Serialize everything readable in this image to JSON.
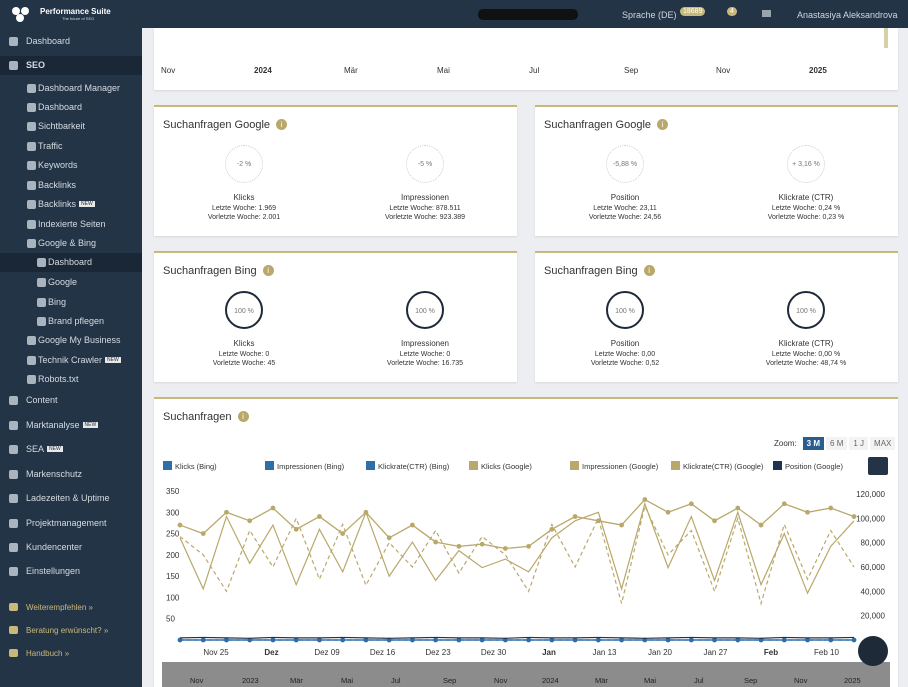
{
  "header": {
    "brand": "Performance Suite",
    "tagline": "The future of SEO",
    "language": "Sprache (DE)",
    "badge1": "18689",
    "badge2": "4",
    "user": "Anastasiya Aleksandrova"
  },
  "sidebar": [
    {
      "label": "Dashboard",
      "level": 0
    },
    {
      "label": "SEO",
      "level": 0,
      "active": true
    },
    {
      "label": "Dashboard Manager",
      "level": 1
    },
    {
      "label": "Dashboard",
      "level": 1
    },
    {
      "label": "Sichtbarkeit",
      "level": 1
    },
    {
      "label": "Traffic",
      "level": 1
    },
    {
      "label": "Keywords",
      "level": 1
    },
    {
      "label": "Backlinks",
      "level": 1
    },
    {
      "label": "Backlinks",
      "level": 1,
      "badge": "NEW"
    },
    {
      "label": "Indexierte Seiten",
      "level": 1
    },
    {
      "label": "Google & Bing",
      "level": 1
    },
    {
      "label": "Dashboard",
      "level": 2,
      "active": true
    },
    {
      "label": "Google",
      "level": 2
    },
    {
      "label": "Bing",
      "level": 2
    },
    {
      "label": "Brand pflegen",
      "level": 2
    },
    {
      "label": "Google My Business",
      "level": 1
    },
    {
      "label": "Technik Crawler",
      "level": 1,
      "badge": "NEW"
    },
    {
      "label": "Robots.txt",
      "level": 1
    },
    {
      "label": "Content",
      "level": 0
    },
    {
      "label": "Marktanalyse",
      "level": 0,
      "badge": "NEW"
    },
    {
      "label": "SEA",
      "level": 0,
      "badge": "NEW"
    },
    {
      "label": "Markenschutz",
      "level": 0
    },
    {
      "label": "Ladezeiten & Uptime",
      "level": 0
    },
    {
      "label": "Projektmanagement",
      "level": 0
    },
    {
      "label": "Kundencenter",
      "level": 0
    },
    {
      "label": "Einstellungen",
      "level": 0
    }
  ],
  "footer_links": [
    "Weiterempfehlen »",
    "Beratung erwünscht? »",
    "Handbuch »"
  ],
  "timeline": [
    "Nov",
    "2024",
    "Mär",
    "Mai",
    "Jul",
    "Sep",
    "Nov",
    "2025"
  ],
  "cards": [
    {
      "title": "Suchanfragen Google",
      "metrics": [
        {
          "pct": "-2 %",
          "name": "Klicks",
          "last": "Letzte Woche: 1.969",
          "prev": "Vorletzte Woche: 2.001"
        },
        {
          "pct": "-5 %",
          "name": "Impressionen",
          "last": "Letzte Woche: 878.511",
          "prev": "Vorletzte Woche: 923.389"
        }
      ]
    },
    {
      "title": "Suchanfragen Google",
      "metrics": [
        {
          "pct": "-5,88 %",
          "name": "Position",
          "last": "Letzte Woche: 23,11",
          "prev": "Vorletzte Woche: 24,56"
        },
        {
          "pct": "+ 3,16 %",
          "name": "Klickrate (CTR)",
          "last": "Letzte Woche: 0,24 %",
          "prev": "Vorletzte Woche: 0,23 %"
        }
      ]
    },
    {
      "title": "Suchanfragen Bing",
      "metrics": [
        {
          "pct": "100 %",
          "name": "Klicks",
          "last": "Letzte Woche: 0",
          "prev": "Vorletzte Woche: 45"
        },
        {
          "pct": "100 %",
          "name": "Impressionen",
          "last": "Letzte Woche: 0",
          "prev": "Vorletzte Woche: 16.735"
        }
      ]
    },
    {
      "title": "Suchanfragen Bing",
      "metrics": [
        {
          "pct": "100 %",
          "name": "Position",
          "last": "Letzte Woche: 0,00",
          "prev": "Vorletzte Woche: 0,52"
        },
        {
          "pct": "100 %",
          "name": "Klickrate (CTR)",
          "last": "Letzte Woche: 0,00 %",
          "prev": "Vorletzte Woche: 48,74 %"
        }
      ]
    }
  ],
  "zoom": {
    "label": "Zoom:",
    "options": [
      "3 M",
      "6 M",
      "1 J",
      "MAX"
    ]
  },
  "navigator": [
    "Nov",
    "2023",
    "Mär",
    "Mai",
    "Jul",
    "Sep",
    "Nov",
    "2024",
    "Mär",
    "Mai",
    "Jul",
    "Sep",
    "Nov",
    "2025"
  ],
  "chart_data": {
    "type": "line",
    "title": "Suchanfragen",
    "xticks": [
      "Nov 25",
      "Dez",
      "Dez 09",
      "Dez 16",
      "Dez 23",
      "Dez 30",
      "Jan",
      "Jan 13",
      "Jan 20",
      "Jan 27",
      "Feb",
      "Feb 10"
    ],
    "ylim": [
      0,
      350
    ],
    "yticks": [
      50,
      100,
      150,
      200,
      250,
      300,
      350
    ],
    "y2lim": [
      0,
      120000
    ],
    "y2ticks": [
      {
        "value": 20000,
        "label": "20,000"
      },
      {
        "value": 40000,
        "label": "40,000"
      },
      {
        "value": 60000,
        "label": "60,000"
      },
      {
        "value": 80000,
        "label": "80,000"
      },
      {
        "value": 100000,
        "label": "100,000"
      },
      {
        "value": 120000,
        "label": "120,000"
      }
    ],
    "series": [
      {
        "name": "Klicks (Bing)",
        "color": "#2f6ea8",
        "style": "dots",
        "values": [
          0,
          0,
          0,
          0,
          0,
          0,
          0,
          0,
          0,
          0,
          0,
          0,
          0,
          0,
          0,
          0,
          0,
          0,
          0,
          0,
          0,
          0,
          0,
          0,
          0,
          0,
          0,
          0,
          0,
          0
        ]
      },
      {
        "name": "Impressionen (Bing)",
        "color": "#2f6ea8",
        "style": "dashed",
        "axis": "y2",
        "values": [
          0,
          0,
          0,
          0,
          0,
          0,
          0,
          0,
          0,
          0,
          0,
          0,
          0,
          0,
          0,
          0,
          0,
          0,
          0,
          0,
          0,
          0,
          0,
          0,
          0,
          0,
          0,
          0,
          0,
          0
        ]
      },
      {
        "name": "Klickrate(CTR) (Bing)",
        "color": "#2f6ea8",
        "style": "solid",
        "values": [
          0,
          0,
          0,
          0,
          0,
          0,
          0,
          0,
          0,
          0,
          0,
          0,
          0,
          0,
          0,
          0,
          0,
          0,
          0,
          0,
          0,
          0,
          0,
          0,
          0,
          0,
          0,
          0,
          0,
          0
        ]
      },
      {
        "name": "Klicks (Google)",
        "color": "#b9a86a",
        "style": "dots",
        "values": [
          270,
          250,
          300,
          280,
          310,
          260,
          290,
          250,
          300,
          240,
          270,
          230,
          220,
          225,
          215,
          220,
          260,
          290,
          280,
          270,
          330,
          300,
          320,
          280,
          310,
          270,
          320,
          300,
          310,
          290
        ]
      },
      {
        "name": "Impressionen (Google)",
        "color": "#b9a86a",
        "style": "dashed",
        "axis": "y2",
        "values": [
          85000,
          70000,
          40000,
          90000,
          60000,
          100000,
          50000,
          95000,
          45000,
          80000,
          60000,
          90000,
          55000,
          85000,
          70000,
          40000,
          95000,
          60000,
          100000,
          30000,
          110000,
          70000,
          90000,
          40000,
          100000,
          30000,
          95000,
          50000,
          90000,
          60000
        ]
      },
      {
        "name": "Klickrate(CTR) (Google)",
        "color": "#b9a86a",
        "style": "solid",
        "values": [
          240,
          120,
          290,
          180,
          270,
          130,
          260,
          160,
          300,
          150,
          230,
          140,
          210,
          170,
          190,
          160,
          240,
          280,
          300,
          120,
          320,
          170,
          290,
          140,
          300,
          130,
          250,
          110,
          220,
          280
        ]
      },
      {
        "name": "Position (Google)",
        "color": "#1e3550",
        "style": "solid",
        "values": [
          5,
          6,
          5,
          4,
          6,
          5,
          5,
          6,
          5,
          4,
          5,
          6,
          5,
          5,
          4,
          6,
          5,
          5,
          6,
          5,
          4,
          5,
          6,
          5,
          5,
          4,
          6,
          5,
          5,
          6
        ]
      }
    ]
  }
}
